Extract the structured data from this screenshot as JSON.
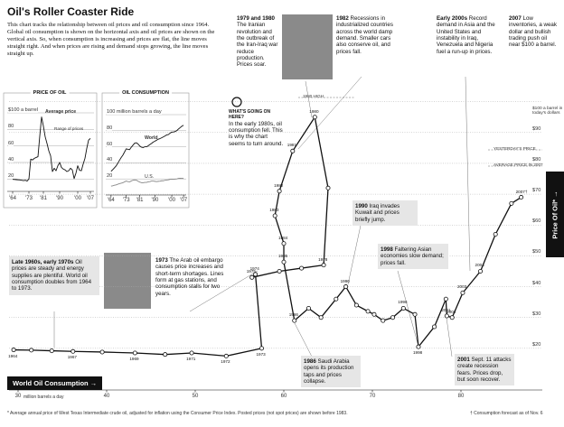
{
  "header": {
    "title": "Oil's Roller Coaster Ride",
    "intro": "This chart tracks the relationship between oil prices and oil consumption since 1964. Global oil consumption is shown on the horizontal axis and oil prices are shown on the vertical axis. So, when consumption is increasing and prices are flat, the line moves straight right. And when prices are rising and demand stops growing, the line moves straight up."
  },
  "annotations": [
    {
      "heading": "1979 and 1980",
      "text": "The Iranian revolution and the outbreak of the Iran-Iraq war reduce production. Prices soar."
    },
    {
      "heading": "1982",
      "text": "Recessions in industrialized countries across the world damp demand. Smaller cars also conserve oil, and prices fall."
    },
    {
      "heading": "Early 2000s",
      "text": "Record demand in Asia and the United States and instability in Iraq, Venezuela and Nigeria fuel a run-up in prices."
    },
    {
      "heading": "2007",
      "text": "Low inventories, a weak dollar and bullish trading push oil near $100 a barrel."
    },
    {
      "heading": "WHAT'S GOING ON HERE?",
      "text": "In the early 1980s, oil consumption fell. This is why the chart seems to turn around."
    },
    {
      "heading": "1990",
      "text": "Iraq invades Kuwait and prices briefly jump."
    },
    {
      "heading": "1998",
      "text": "Faltering Asian economies slow demand; prices fall."
    },
    {
      "heading": "Late 1960s, early 1970s",
      "text": "Oil prices are steady and energy supplies are plentiful. World oil consumption doubles from 1964 to 1973."
    },
    {
      "heading": "1973",
      "text": "The Arab oil embargo causes price increases and short-term shortages. Lines form at gas stations, and consumption stalls for two years."
    },
    {
      "heading": "1986",
      "text": "Saudi Arabia opens its production taps and prices collapse."
    },
    {
      "heading": "2001",
      "text": "Sept. 11 attacks create recession fears. Prices drop, but soon recover."
    }
  ],
  "footer": [
    "* Average annual price of West Texas Intermediate crude oil, adjusted for inflation using the Consumer Price Index. Posted prices (not spot prices) are shown before 1983.",
    "† Consumption forecast as of Nov. 6"
  ],
  "chart_data": [
    {
      "type": "line",
      "markers": true,
      "color": "#111111",
      "x_label": "World Oil Consumption →",
      "x_unit": "million barrels a day",
      "y_label": "Price Of Oil* →",
      "x": [
        29.5,
        31.5,
        33.8,
        36.2,
        39.5,
        43.2,
        46.6,
        49.6,
        53.5,
        57.5,
        56.8,
        56.4,
        59.5,
        62,
        64.5,
        65,
        63.5,
        61,
        59.5,
        59,
        60,
        60,
        61.2,
        62.8,
        64.2,
        65.9,
        67,
        68.2,
        69.5,
        70.2,
        71.2,
        72.3,
        73.5,
        74.8,
        75.2,
        77,
        78.3,
        78.4,
        79,
        80.2,
        82.2,
        83.9,
        85.7,
        86.8
      ],
      "values": [
        19.5,
        19.4,
        19.2,
        19,
        18.8,
        18.5,
        18,
        18.5,
        17.5,
        20,
        44,
        43,
        45,
        46,
        47,
        72,
        95,
        84,
        71,
        63,
        54,
        48,
        29,
        33,
        30,
        36,
        40,
        34,
        32,
        31,
        29,
        30,
        33,
        31,
        20.5,
        27,
        36,
        30.5,
        30,
        38,
        45,
        57,
        67,
        69
      ],
      "point_labels": [
        "1964",
        null,
        null,
        "1967",
        null,
        "1969",
        null,
        "1971",
        "1972",
        "1973",
        "1974",
        "1975",
        null,
        null,
        "1978",
        null,
        "1980",
        "1981",
        "1982",
        "1983",
        "1984",
        "1985",
        "1986",
        null,
        null,
        null,
        "1990",
        null,
        null,
        null,
        null,
        null,
        "1996",
        null,
        "1998",
        null,
        null,
        "2001",
        "2002",
        "2003",
        "2004",
        null,
        null,
        "2007†"
      ],
      "xlim": [
        29,
        88
      ],
      "xticks": [
        30,
        40,
        50,
        60,
        70,
        80
      ],
      "ylim": [
        10,
        104
      ],
      "yticks": [
        {
          "value": 20,
          "label": "$20"
        },
        {
          "value": 30,
          "label": "$30"
        },
        {
          "value": 40,
          "label": "$40"
        },
        {
          "value": 50,
          "label": "$50"
        },
        {
          "value": 60,
          "label": "$60"
        },
        {
          "value": 70,
          "label": "$70"
        },
        {
          "value": 80,
          "label": "$80"
        },
        {
          "value": 90,
          "label": "$90"
        },
        {
          "value": 100,
          "label": "$100 a barrel in today's dollars"
        }
      ],
      "grid": true,
      "annotations": [
        "1980 HIGH",
        "YESTERDAY'S PRICE",
        "AVERAGE PRICE IN 2007"
      ]
    },
    {
      "type": "line",
      "title": "PRICE OF OIL",
      "x": [
        1964,
        1965,
        1966,
        1967,
        1968,
        1969,
        1970,
        1971,
        1972,
        1973,
        1974,
        1975,
        1976,
        1977,
        1978,
        1979,
        1980,
        1981,
        1982,
        1983,
        1984,
        1985,
        1986,
        1987,
        1988,
        1989,
        1990,
        1991,
        1992,
        1993,
        1994,
        1995,
        1996,
        1997,
        1998,
        1999,
        2000,
        2001,
        2002,
        2003,
        2004,
        2005,
        2006,
        2007
      ],
      "series": [
        {
          "name": "Average price",
          "color": "#111111",
          "values": [
            19.5,
            19.4,
            19.2,
            19,
            18.8,
            18.5,
            18,
            18.5,
            17.5,
            20,
            44,
            43,
            45,
            46,
            47,
            72,
            95,
            84,
            71,
            63,
            54,
            48,
            29,
            33,
            30,
            36,
            40,
            34,
            32,
            31,
            29,
            30,
            33,
            31,
            20.5,
            27,
            36,
            30.5,
            30,
            38,
            45,
            57,
            67,
            69
          ]
        }
      ],
      "xlim": [
        1963,
        2008
      ],
      "xticks": [
        {
          "value": 1964,
          "label": "'64"
        },
        {
          "value": 1973,
          "label": "'73"
        },
        {
          "value": 1981,
          "label": "'81"
        },
        {
          "value": 1990,
          "label": "'90"
        },
        {
          "value": 2000,
          "label": "'00"
        },
        {
          "value": 2007,
          "label": "'07"
        }
      ],
      "ylim": [
        5,
        100
      ],
      "yticks": [
        20,
        40,
        60,
        80,
        {
          "value": 100,
          "label": "$100 a barrel"
        }
      ],
      "grid": true,
      "annotations": [
        "Range of prices"
      ]
    },
    {
      "type": "line",
      "title": "OIL CONSUMPTION",
      "x": [
        1964,
        1965,
        1966,
        1967,
        1968,
        1969,
        1970,
        1971,
        1972,
        1973,
        1974,
        1975,
        1976,
        1977,
        1978,
        1979,
        1980,
        1981,
        1982,
        1983,
        1984,
        1985,
        1986,
        1987,
        1988,
        1989,
        1990,
        1991,
        1992,
        1993,
        1994,
        1995,
        1996,
        1997,
        1998,
        1999,
        2000,
        2001,
        2002,
        2003,
        2004,
        2005,
        2006,
        2007
      ],
      "series": [
        {
          "name": "World",
          "color": "#111111",
          "values": [
            29.5,
            31.5,
            33.8,
            36.2,
            39.5,
            43.2,
            46.6,
            49.6,
            53.5,
            57.5,
            56.8,
            56.4,
            59.5,
            62,
            64.5,
            65,
            63.5,
            61,
            59.5,
            59,
            60,
            60,
            61.2,
            62.8,
            64.2,
            65.9,
            67,
            68.2,
            69.5,
            70.2,
            71.2,
            72.3,
            73.5,
            74.8,
            75.2,
            77,
            78.3,
            78.4,
            79,
            80.2,
            82.2,
            83.9,
            85.7,
            86.8
          ]
        },
        {
          "name": "U.S.",
          "color": "#888888",
          "values": [
            11,
            11.5,
            12.1,
            12.6,
            13.4,
            14.1,
            14.7,
            15.2,
            16.4,
            17.3,
            16.7,
            16.3,
            17.5,
            18.4,
            18.8,
            18.5,
            17.1,
            16.1,
            15.3,
            15.2,
            15.7,
            15.7,
            16.3,
            16.7,
            17.3,
            17.3,
            17,
            16.7,
            17,
            17.2,
            17.7,
            17.7,
            18.3,
            18.6,
            18.9,
            19.5,
            19.7,
            19.6,
            19.8,
            20,
            20.7,
            20.8,
            20.7,
            20.7
          ]
        }
      ],
      "xlim": [
        1963,
        2008
      ],
      "xticks": [
        {
          "value": 1964,
          "label": "'64"
        },
        {
          "value": 1973,
          "label": "'73"
        },
        {
          "value": 1981,
          "label": "'81"
        },
        {
          "value": 1990,
          "label": "'90"
        },
        {
          "value": 2000,
          "label": "'00"
        },
        {
          "value": 2007,
          "label": "'07"
        }
      ],
      "ylim": [
        0,
        100
      ],
      "yticks": [
        20,
        40,
        60,
        80,
        {
          "value": 100,
          "label": "100 million barrels a day"
        }
      ],
      "grid": true
    }
  ]
}
